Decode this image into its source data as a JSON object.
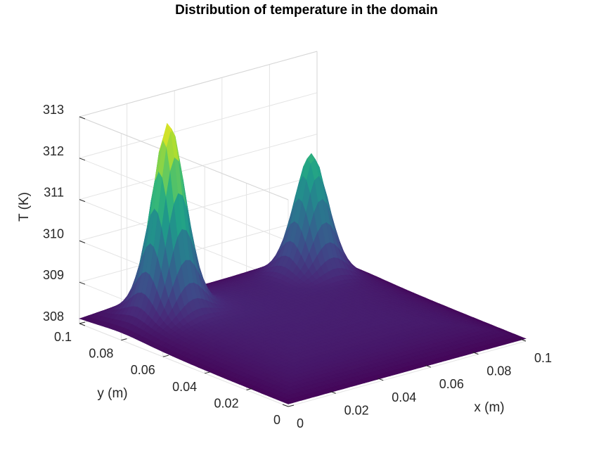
{
  "chart_data": {
    "type": "surface",
    "title": "Distribution of temperature in the domain",
    "xlabel": "x (m)",
    "ylabel": "y (m)",
    "zlabel": "T (K)",
    "xlim": [
      0,
      0.1
    ],
    "ylim": [
      0,
      0.1
    ],
    "zlim": [
      308,
      313
    ],
    "x_ticks": [
      "0",
      "0.02",
      "0.04",
      "0.06",
      "0.08",
      "0.1"
    ],
    "y_ticks": [
      "0",
      "0.02",
      "0.04",
      "0.06",
      "0.08",
      "0.1"
    ],
    "z_ticks": [
      "308",
      "309",
      "310",
      "311",
      "312",
      "313"
    ],
    "grid": true,
    "colormap": "viridis",
    "baseline_T": 308.05,
    "peaks": [
      {
        "x": 0.02,
        "y": 0.08,
        "T": 313.0
      },
      {
        "x": 0.08,
        "y": 0.08,
        "T": 311.3
      }
    ]
  }
}
